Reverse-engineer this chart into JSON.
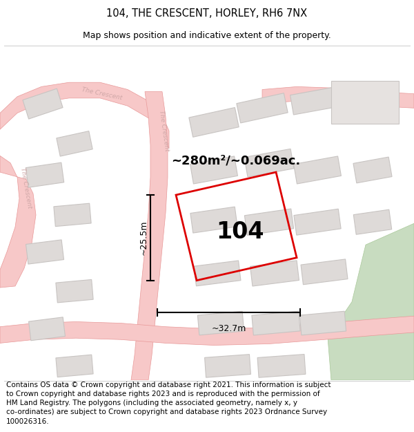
{
  "title": "104, THE CRESCENT, HORLEY, RH6 7NX",
  "subtitle": "Map shows position and indicative extent of the property.",
  "footer": "Contains OS data © Crown copyright and database right 2021. This information is subject\nto Crown copyright and database rights 2023 and is reproduced with the permission of\nHM Land Registry. The polygons (including the associated geometry, namely x, y\nco-ordinates) are subject to Crown copyright and database rights 2023 Ordnance Survey\n100026316.",
  "area_text": "~280m²/~0.069ac.",
  "width_text": "~32.7m",
  "height_text": "~25.5m",
  "label_104": "104",
  "map_bg": "#f2f0f0",
  "road_fill": "#f7c8c8",
  "road_edge": "#e89898",
  "building_fill": "#dedad8",
  "building_edge": "#c8c4c2",
  "highlight_color": "#dd0000",
  "green_fill": "#c8dcc0",
  "green_edge": "#a8c898",
  "title_fontsize": 10.5,
  "subtitle_fontsize": 9,
  "footer_fontsize": 7.5,
  "annotation_fontsize": 13,
  "label_fontsize": 24,
  "dim_fontsize": 9
}
